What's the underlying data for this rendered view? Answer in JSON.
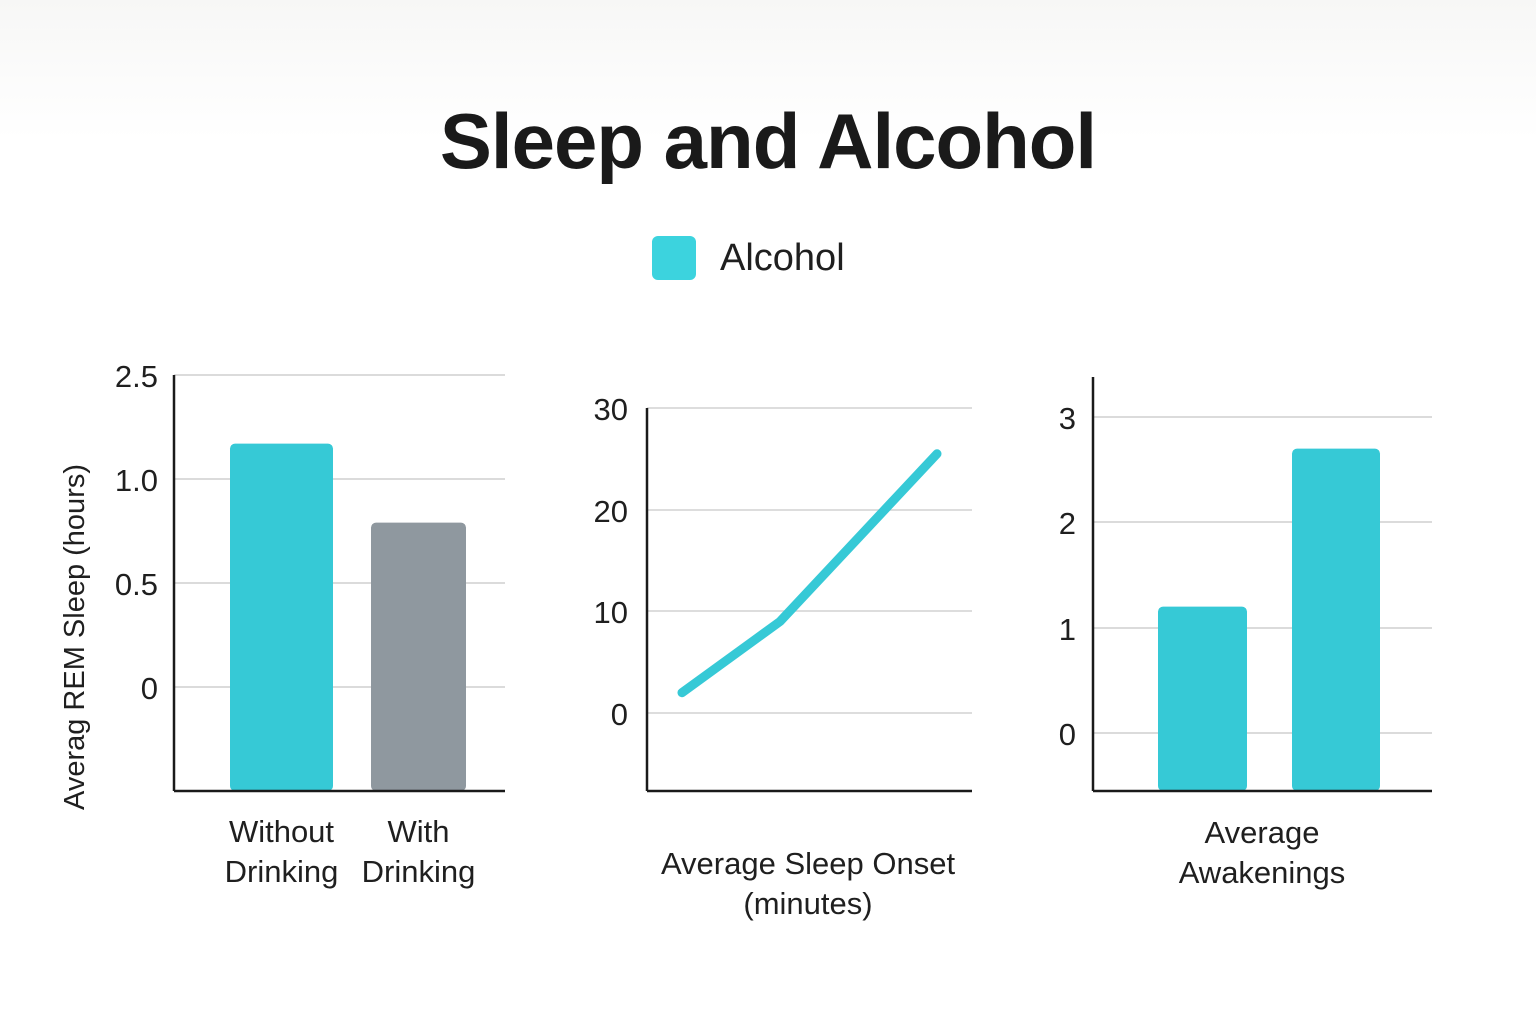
{
  "title": "Sleep and Alcohol",
  "legend": {
    "label": "Alcohol",
    "color": "#3cd3de"
  },
  "chart_data": [
    {
      "type": "bar",
      "ylabel": "Averag REM Sleep (hours)",
      "yticks": [
        "2.5",
        "1.0",
        "0.5",
        "0"
      ],
      "categories": [
        [
          "Without",
          "Drinking"
        ],
        [
          "With",
          "Drinking"
        ]
      ],
      "values": [
        1.17,
        0.79
      ],
      "colors": [
        "#36c9d6",
        "#8f989f"
      ],
      "grid": true
    },
    {
      "type": "line",
      "xlabel": [
        "Average Sleep Onset",
        "(minutes)"
      ],
      "yticks": [
        "30",
        "20",
        "10",
        "0"
      ],
      "ylim": [
        0,
        30
      ],
      "series": [
        {
          "values": [
            2,
            9,
            25.5
          ],
          "color": "#36c9d6"
        }
      ],
      "grid": true
    },
    {
      "type": "bar",
      "xlabel": [
        "Average",
        "Awakenings"
      ],
      "yticks": [
        "3",
        "2",
        "1",
        "0"
      ],
      "ylim": [
        0,
        3
      ],
      "values": [
        1.2,
        2.7
      ],
      "colors": [
        "#36c9d6",
        "#36c9d6"
      ],
      "grid": true
    }
  ]
}
